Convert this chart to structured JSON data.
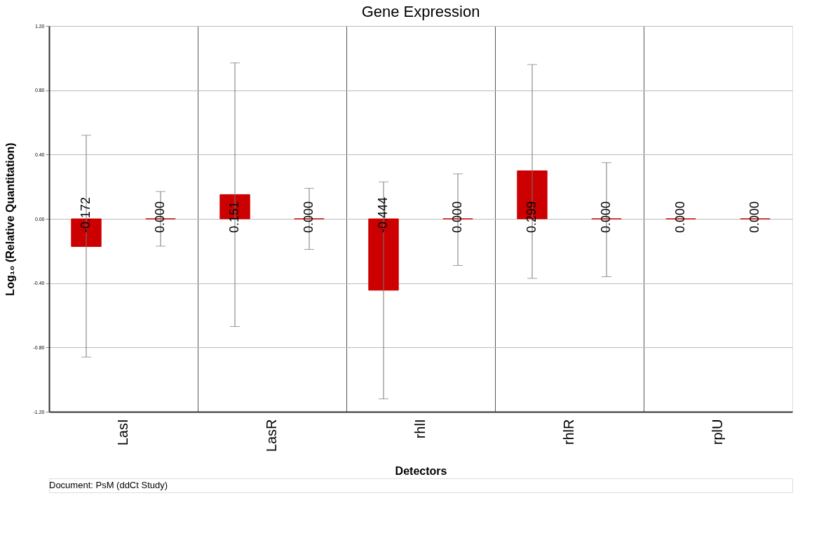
{
  "chart_data": {
    "type": "bar",
    "title": "Gene Expression",
    "xlabel": "Detectors",
    "ylabel": "Log₁₀ (Relative Quantitation)",
    "categories": [
      "LasI",
      "LasR",
      "rhlI",
      "rhlR",
      "rplU"
    ],
    "series": [
      {
        "color": "#cc0000",
        "values": [
          -0.172,
          0.151,
          -0.444,
          0.299,
          0.0
        ],
        "value_labels": [
          "-0.172",
          "0.151",
          "-0.444",
          "0.299",
          "0.000"
        ],
        "errors": [
          [
            -0.86,
            0.52
          ],
          [
            -0.67,
            0.97
          ],
          [
            -1.12,
            0.23
          ],
          [
            -0.37,
            0.96
          ],
          null
        ]
      },
      {
        "color": "#cc0000",
        "values": [
          0.0,
          0.0,
          0.0,
          0.0,
          0.0
        ],
        "value_labels": [
          "0.000",
          "0.000",
          "0.000",
          "0.000",
          "0.000"
        ],
        "errors": [
          [
            -0.17,
            0.17
          ],
          [
            -0.19,
            0.19
          ],
          [
            -0.29,
            0.28
          ],
          [
            -0.36,
            0.35
          ],
          null
        ]
      }
    ],
    "ylim": [
      -1.2,
      1.2
    ],
    "yticks": [
      {
        "value": -1.2,
        "label": "-1.20"
      },
      {
        "value": -0.8,
        "label": "-0.80"
      },
      {
        "value": -0.4,
        "label": "-0.40"
      },
      {
        "value": 0,
        "label": "0.00"
      },
      {
        "value": 0.4,
        "label": "0.40"
      },
      {
        "value": 0.8,
        "label": "0.80"
      },
      {
        "value": 1.2,
        "label": "1.20"
      }
    ],
    "grid": true,
    "annotations": [
      "Document: PsM (ddCt Study)"
    ]
  }
}
